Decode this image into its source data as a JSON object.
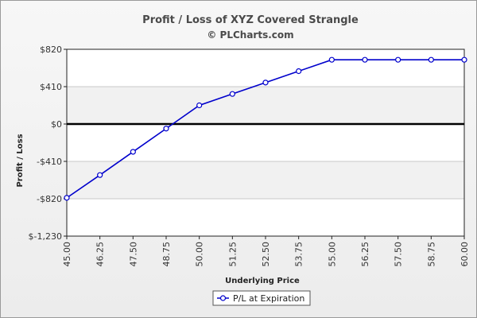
{
  "chart_data": {
    "type": "line",
    "title": "Profit / Loss of XYZ Covered Strangle",
    "subtitle": "© PLCharts.com",
    "xlabel": "Underlying Price",
    "ylabel": "Profit / Loss",
    "x": [
      45.0,
      46.25,
      47.5,
      48.75,
      50.0,
      51.25,
      52.5,
      53.75,
      55.0,
      56.25,
      57.5,
      58.75,
      60.0
    ],
    "x_tick_labels": [
      "45.00",
      "46.25",
      "47.50",
      "48.75",
      "50.00",
      "51.25",
      "52.50",
      "53.75",
      "55.00",
      "56.25",
      "57.50",
      "58.75",
      "60.00"
    ],
    "y_ticks": [
      820,
      410,
      0,
      -410,
      -820,
      -1230
    ],
    "y_tick_labels": [
      "$820",
      "$410",
      "$0",
      "-$410",
      "-$820",
      "$-1,230"
    ],
    "ylim": [
      -1230,
      820
    ],
    "grid": true,
    "legend_position": "bottom-center",
    "series": [
      {
        "name": "P/L at Expiration",
        "color": "#0000cc",
        "values": [
          -810,
          -560,
          -305,
          -50,
          205,
          330,
          455,
          580,
          705,
          705,
          705,
          705,
          705
        ]
      }
    ]
  }
}
